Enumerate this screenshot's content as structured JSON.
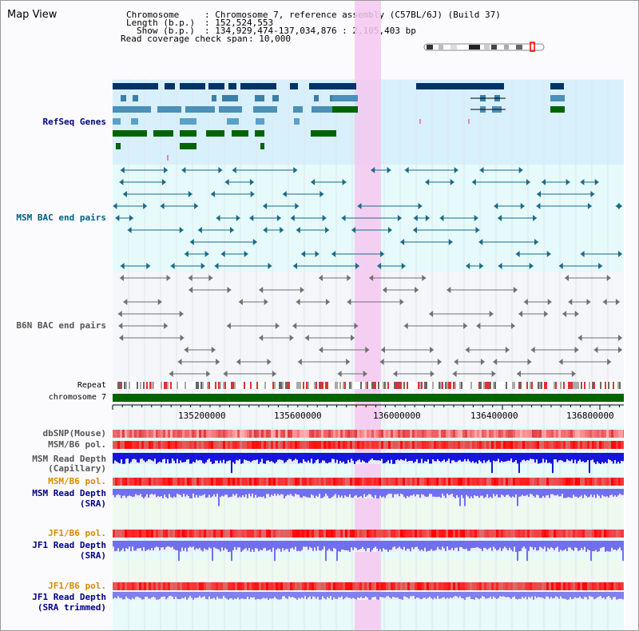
{
  "title": "Map View",
  "info": {
    "chromosome_label": "Chromosome",
    "chromosome_value": ": Chromosome 7, reference assembly (C57BL/6J) (Build 37)",
    "length_label": "Length (b.p.)",
    "length_value": ": 152,524,553",
    "show_label": "Show (b.p.)",
    "show_value": ": 134,929,474-137,034,876 : 2,105,403 bp",
    "coverage_label": "Read coverage check span",
    "coverage_value": ": 10,000"
  },
  "tracks": {
    "refseq": "RefSeq Genes",
    "msm_bac": "MSM BAC end pairs",
    "b6n_bac": "B6N BAC end pairs",
    "repeat": "Repeat",
    "chromosome": "chromosome 7",
    "dbsnp": "dbSNP(Mouse)",
    "msm_b6_pol_1": "MSM/B6 pol.",
    "msm_depth_cap_1": "MSM Read Depth",
    "msm_depth_cap_2": "(Capillary)",
    "msm_b6_pol_2": "MSM/B6 pol.",
    "msm_depth_sra_1": "MSM Read Depth",
    "msm_depth_sra_2": "(SRA)",
    "jf1_pol_1": "JF1/B6 pol.",
    "jf1_depth_sra_1": "JF1 Read Depth",
    "jf1_depth_sra_2": "(SRA)",
    "jf1_pol_2": "JF1/B6 pol.",
    "jf1_depth_trim_1": "JF1 Read Depth",
    "jf1_depth_trim_2": "(SRA trimmed)"
  },
  "ruler": {
    "ticks": [
      "135200000",
      "135600000",
      "136000000",
      "136400000",
      "136800000"
    ]
  },
  "colors": {
    "refseq_bg": "#d8f0fb",
    "bac_bg": "#e6fafb",
    "highlight": "#f5c8f0",
    "chromosome_bar": "#006400",
    "depth_blue": "#1515dd",
    "depth_light": "#7070ee",
    "pol_red": "#e83030"
  }
}
